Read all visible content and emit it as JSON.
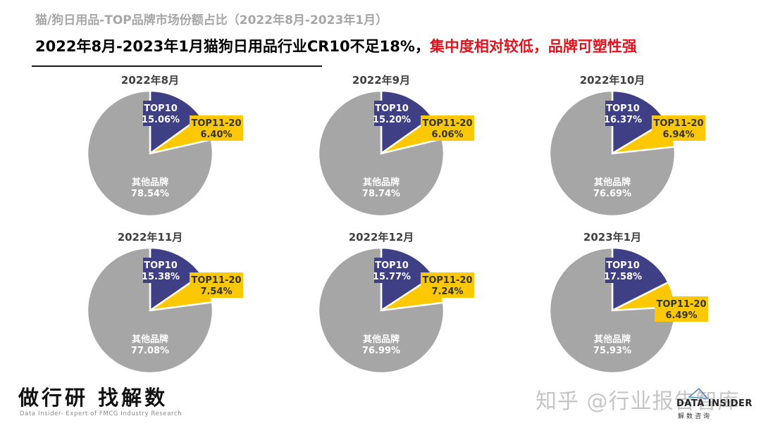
{
  "header": {
    "subtitle": "猫/狗日用品-TOP品牌市场份额占比（2022年8月-2023年1月）",
    "headline_black": "2022年8月-2023年1月猫狗日用品行业CR10不足18%，",
    "headline_red": "集中度相对较低，品牌可塑性强"
  },
  "colors": {
    "top10": "#3f3f86",
    "top11_20": "#fbc802",
    "others": "#a6a6a6",
    "headline_accent": "#e0141e"
  },
  "chart_data": [
    {
      "type": "pie",
      "title": "2022年8月",
      "labels": [
        "TOP10",
        "TOP11-20",
        "其他品牌"
      ],
      "values": [
        15.06,
        6.4,
        78.54
      ],
      "value_labels": [
        "15.06%",
        "6.40%",
        "78.54%"
      ]
    },
    {
      "type": "pie",
      "title": "2022年9月",
      "labels": [
        "TOP10",
        "TOP11-20",
        "其他品牌"
      ],
      "values": [
        15.2,
        6.06,
        78.74
      ],
      "value_labels": [
        "15.20%",
        "6.06%",
        "78.74%"
      ]
    },
    {
      "type": "pie",
      "title": "2022年10月",
      "labels": [
        "TOP10",
        "TOP11-20",
        "其他品牌"
      ],
      "values": [
        16.37,
        6.94,
        76.69
      ],
      "value_labels": [
        "16.37%",
        "6.94%",
        "76.69%"
      ]
    },
    {
      "type": "pie",
      "title": "2022年11月",
      "labels": [
        "TOP10",
        "TOP11-20",
        "其他品牌"
      ],
      "values": [
        15.38,
        7.54,
        77.08
      ],
      "value_labels": [
        "15.38%",
        "7.54%",
        "77.08%"
      ]
    },
    {
      "type": "pie",
      "title": "2022年12月",
      "labels": [
        "TOP10",
        "TOP11-20",
        "其他品牌"
      ],
      "values": [
        15.77,
        7.24,
        76.99
      ],
      "value_labels": [
        "15.77%",
        "7.24%",
        "76.99%"
      ]
    },
    {
      "type": "pie",
      "title": "2023年1月",
      "labels": [
        "TOP10",
        "TOP11-20",
        "其他品牌"
      ],
      "values": [
        17.58,
        6.49,
        75.93
      ],
      "value_labels": [
        "17.58%",
        "6.49%",
        "75.93%"
      ]
    }
  ],
  "footer": {
    "slogan": "做行研 找解数",
    "tagline": "Data Insider- Expert of FMCG Industry Research",
    "watermark": "知乎 @行业报告智库",
    "logo_name": "DATA INSIDER",
    "logo_sub": "解数咨询"
  }
}
